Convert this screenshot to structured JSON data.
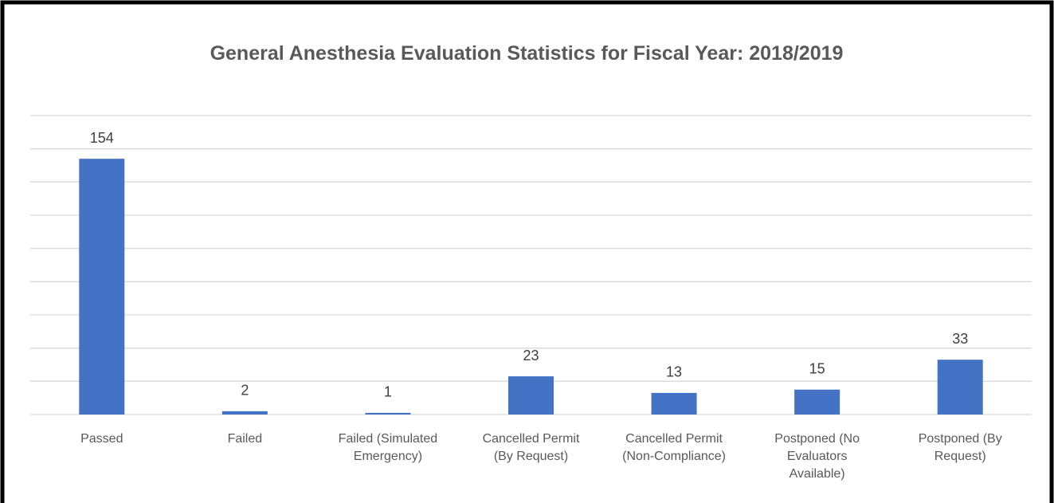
{
  "chart_data": {
    "type": "bar",
    "title": "General Anesthesia Evaluation Statistics for Fiscal Year: 2018/2019",
    "categories": [
      "Passed",
      "Failed",
      "Failed (Simulated Emergency)",
      "Cancelled Permit (By Request)",
      "Cancelled Permit (Non-Compliance)",
      "Postponed (No Evaluators Available)",
      "Postponed (By Request)"
    ],
    "values": [
      154,
      2,
      1,
      23,
      13,
      15,
      33
    ],
    "color": "#4472c4",
    "ylim": [
      0,
      180
    ],
    "yticks": [
      0,
      20,
      40,
      60,
      80,
      100,
      120,
      140,
      160,
      180
    ],
    "grid": true
  }
}
